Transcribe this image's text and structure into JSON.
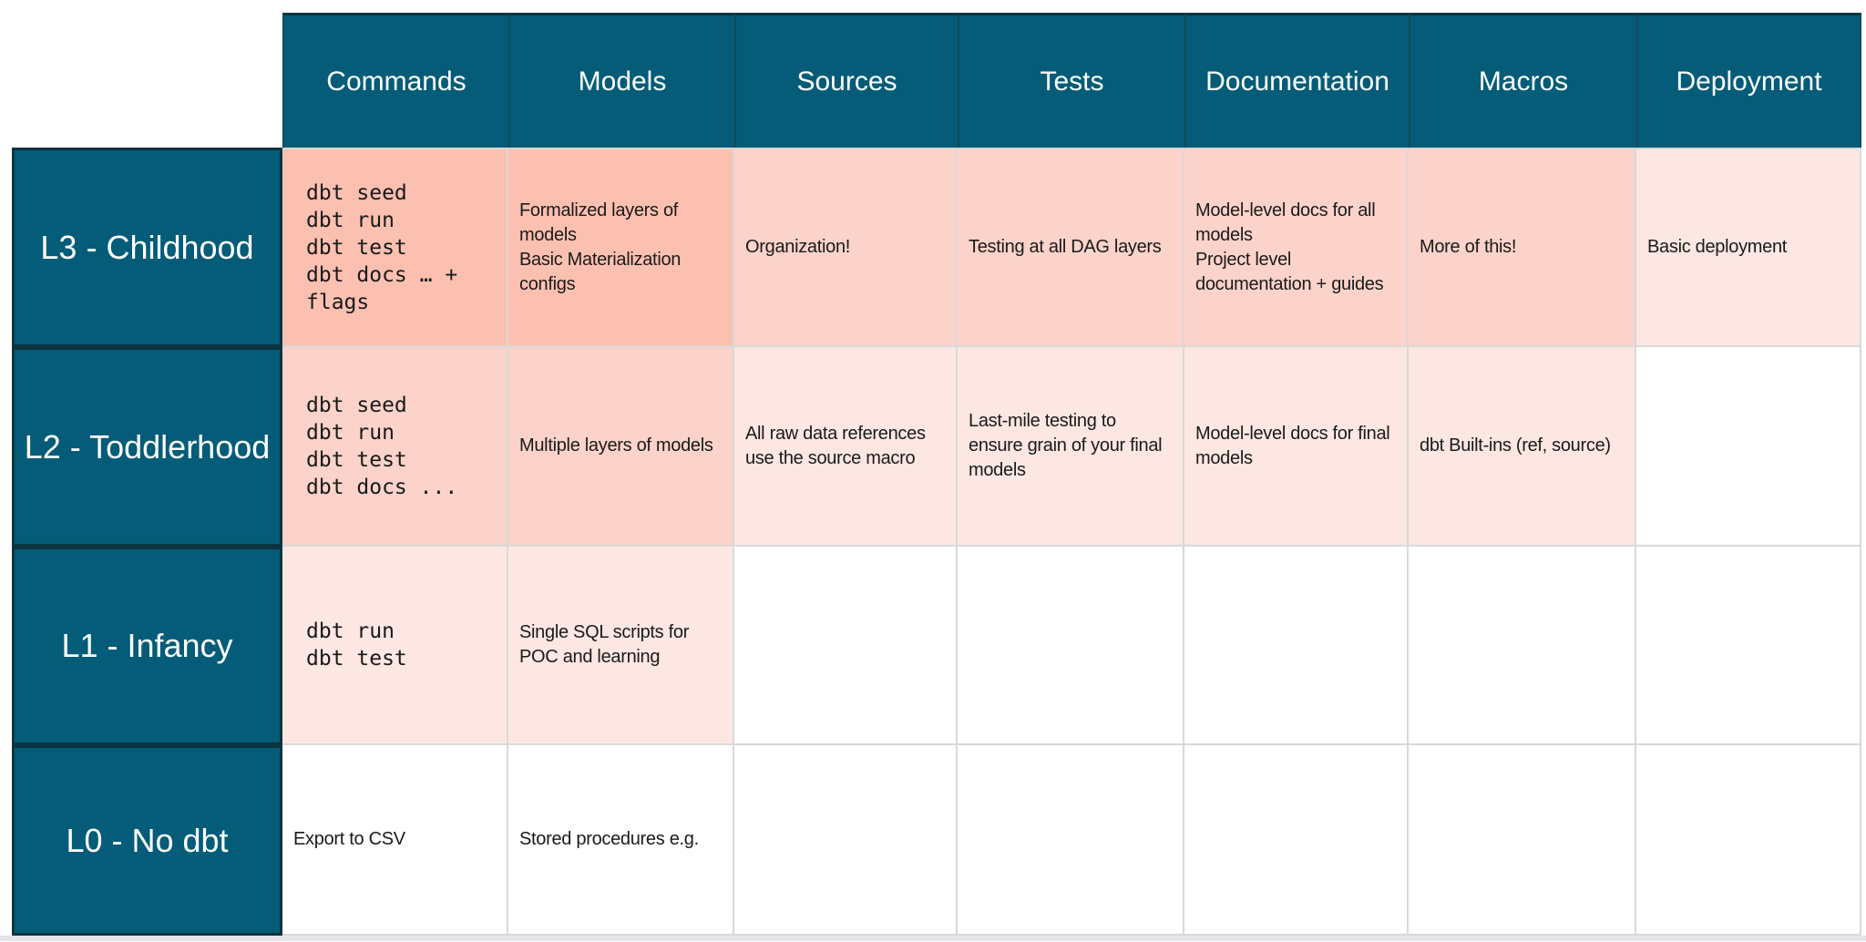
{
  "table": {
    "columns": [
      "Commands",
      "Models",
      "Sources",
      "Tests",
      "Documentation",
      "Macros",
      "Deployment"
    ],
    "rows": [
      {
        "label": "L3 - Childhood",
        "cells": [
          {
            "text": "dbt seed\ndbt run\ndbt test\ndbt docs … +\nflags",
            "mono": true,
            "tier": 1
          },
          {
            "text": "Formalized layers of models\nBasic Materialization configs",
            "mono": false,
            "tier": 1
          },
          {
            "text": "Organization!",
            "mono": false,
            "tier": 2
          },
          {
            "text": "Testing at all DAG layers",
            "mono": false,
            "tier": 2
          },
          {
            "text": "Model-level docs for all models\nProject level documentation + guides",
            "mono": false,
            "tier": 2
          },
          {
            "text": "More of this!",
            "mono": false,
            "tier": 2
          },
          {
            "text": "Basic deployment",
            "mono": false,
            "tier": 3
          }
        ]
      },
      {
        "label": "L2 - Toddlerhood",
        "cells": [
          {
            "text": "dbt seed\ndbt run\ndbt test\ndbt docs ...",
            "mono": true,
            "tier": 2
          },
          {
            "text": "Multiple layers of models",
            "mono": false,
            "tier": 2
          },
          {
            "text": "All raw data references use the source macro",
            "mono": false,
            "tier": 3
          },
          {
            "text": "Last-mile testing to ensure grain of your final models",
            "mono": false,
            "tier": 3
          },
          {
            "text": "Model-level docs for final models",
            "mono": false,
            "tier": 3
          },
          {
            "text": "dbt Built-ins (ref, source)",
            "mono": false,
            "tier": 3
          },
          {
            "text": "",
            "mono": false,
            "tier": 0
          }
        ]
      },
      {
        "label": "L1 - Infancy",
        "cells": [
          {
            "text": "dbt run\ndbt test",
            "mono": true,
            "tier": 3
          },
          {
            "text": "Single SQL scripts for POC and learning",
            "mono": false,
            "tier": 3
          },
          {
            "text": "",
            "mono": false,
            "tier": 0
          },
          {
            "text": "",
            "mono": false,
            "tier": 0
          },
          {
            "text": "",
            "mono": false,
            "tier": 0
          },
          {
            "text": "",
            "mono": false,
            "tier": 0
          },
          {
            "text": "",
            "mono": false,
            "tier": 0
          }
        ]
      },
      {
        "label": "L0 - No dbt",
        "cells": [
          {
            "text": "Export to CSV",
            "mono": false,
            "tier": 0
          },
          {
            "text": "Stored procedures e.g.",
            "mono": false,
            "tier": 0
          },
          {
            "text": "",
            "mono": false,
            "tier": 0
          },
          {
            "text": "",
            "mono": false,
            "tier": 0
          },
          {
            "text": "",
            "mono": false,
            "tier": 0
          },
          {
            "text": "",
            "mono": false,
            "tier": 0
          },
          {
            "text": "",
            "mono": false,
            "tier": 0
          }
        ]
      }
    ]
  },
  "colors": {
    "teal": "#045c78",
    "teal_border": "#0c3440",
    "header_divider": "#14495a",
    "grid_line": "#d9d9d9",
    "text": "#1a1a1a",
    "header_text": "#ffffff",
    "page_bg": "#ffffff",
    "bottom_bar": "#e3e5e8",
    "tiers": {
      "0": "#ffffff",
      "1": "#fcc0b1",
      "2": "#fbd3ca",
      "3": "#fce7e2"
    }
  }
}
